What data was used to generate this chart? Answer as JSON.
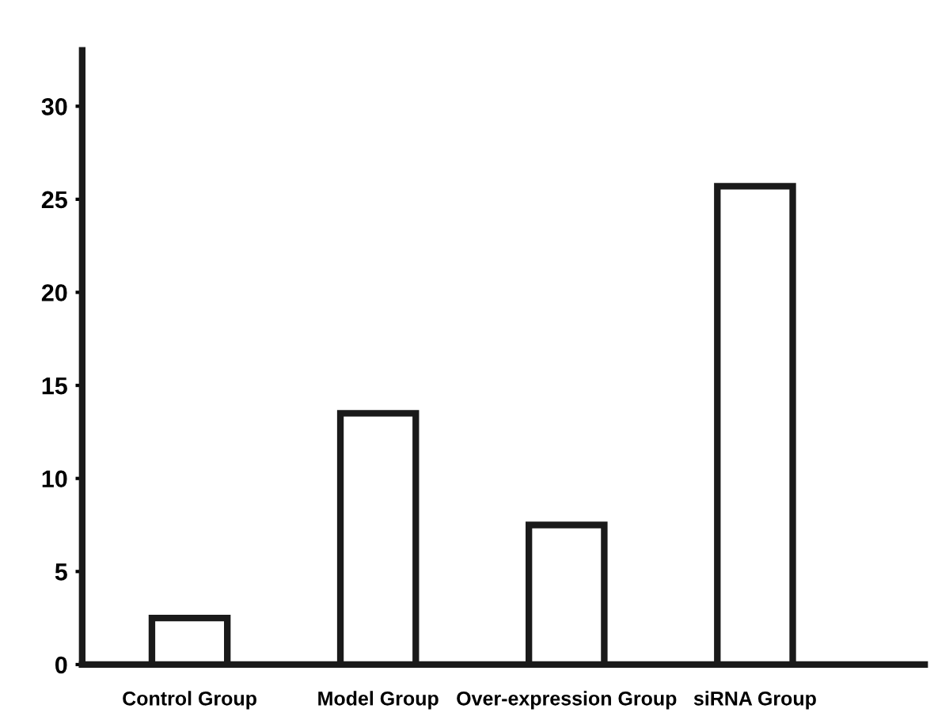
{
  "chart_data": {
    "type": "bar",
    "categories": [
      "Control Group",
      "Model Group",
      "Over-expression Group",
      "siRNA Group"
    ],
    "values": [
      2.5,
      13.5,
      7.5,
      25.7
    ],
    "color": "#ffffff",
    "ylim": [
      0,
      33
    ],
    "yticks": [
      0,
      5,
      10,
      15,
      20,
      25,
      30
    ],
    "grid": false
  }
}
